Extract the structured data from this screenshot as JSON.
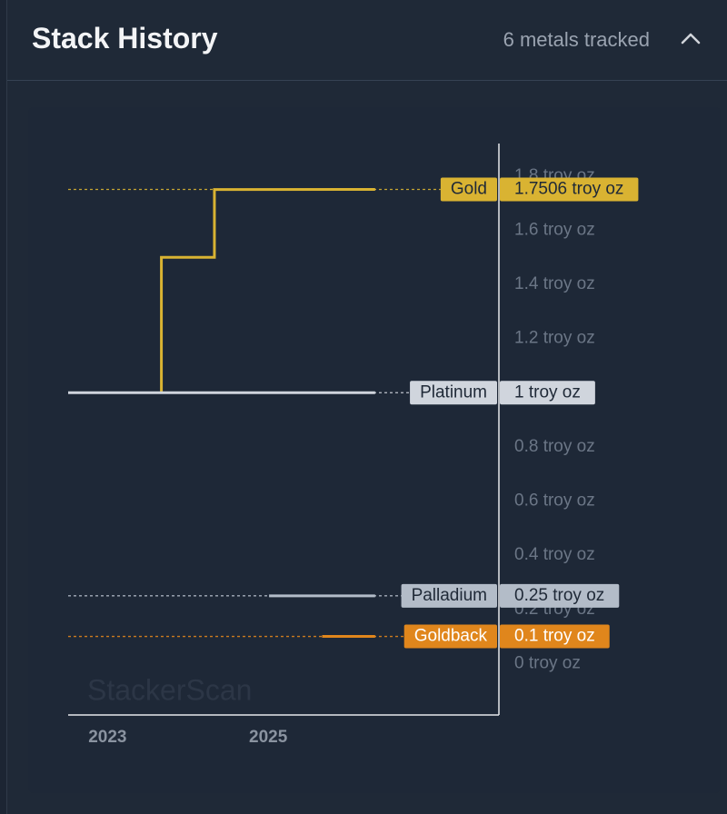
{
  "header": {
    "title": "Stack History",
    "subtitle": "6 metals tracked"
  },
  "chart_data": {
    "type": "line",
    "interpolation": "step",
    "watermark": "StackerScan",
    "xlim": [
      2022.51,
      2027.87
    ],
    "xticks": [
      2023,
      2025
    ],
    "ylim": [
      -0.19,
      1.92
    ],
    "yticks": [
      {
        "value": 0,
        "label": "0 troy oz"
      },
      {
        "value": 0.2,
        "label": "0.2 troy oz"
      },
      {
        "value": 0.4,
        "label": "0.4 troy oz"
      },
      {
        "value": 0.6,
        "label": "0.6 troy oz"
      },
      {
        "value": 0.8,
        "label": "0.8 troy oz"
      },
      {
        "value": 1,
        "label": "1 troy oz"
      },
      {
        "value": 1.2,
        "label": "1.2 troy oz"
      },
      {
        "value": 1.4,
        "label": "1.4 troy oz"
      },
      {
        "value": 1.6,
        "label": "1.6 troy oz"
      },
      {
        "value": 1.8,
        "label": "1.8 troy oz"
      }
    ],
    "series": [
      {
        "name": "Gold",
        "color": "#d9b332",
        "x": [
          2023.67,
          2023.67,
          2024.33,
          2024.33,
          2026.33
        ],
        "values": [
          1,
          1.5,
          1.5,
          1.75,
          1.7506
        ],
        "value_labels": [
          null,
          null,
          null,
          null,
          "1.7506 troy oz"
        ]
      },
      {
        "name": "Platinum",
        "color": "#d0d5dd",
        "x": [
          2022.51,
          2026.33
        ],
        "values": [
          1,
          1
        ],
        "value_labels": [
          null,
          "1 troy oz"
        ]
      },
      {
        "name": "Palladium",
        "color": "#b3bcc8",
        "x": [
          2025.01,
          2026.33
        ],
        "values": [
          0.25,
          0.25
        ],
        "value_labels": [
          null,
          "0.25 troy oz"
        ]
      },
      {
        "name": "Goldback",
        "color": "#e0861c",
        "x": [
          2025.67,
          2026.33
        ],
        "values": [
          0.1,
          0.1
        ],
        "value_labels": [
          null,
          "0.1 troy oz"
        ]
      }
    ]
  }
}
